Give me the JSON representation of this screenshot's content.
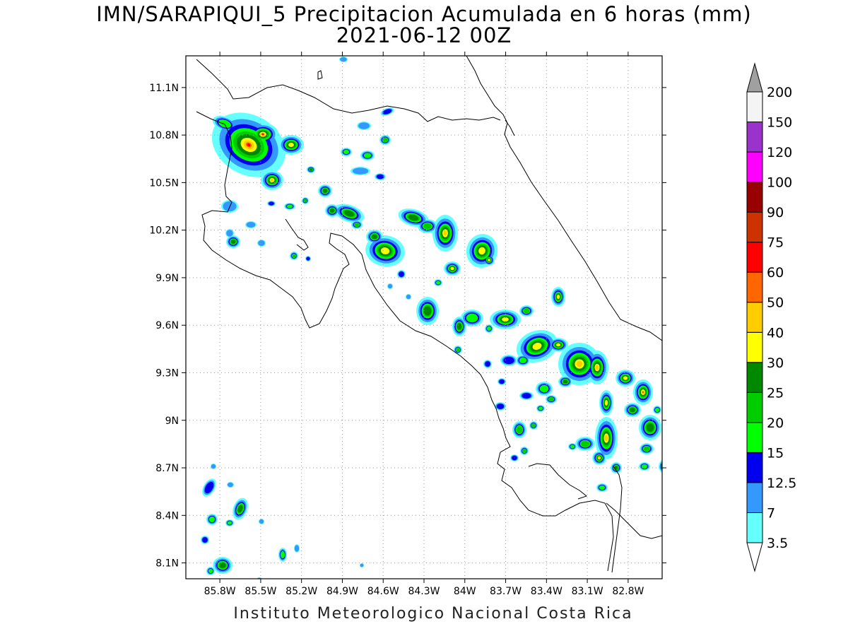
{
  "title": "IMN/SARAPIQUI_5 Precipitacion Acumulada en 6 horas (mm)",
  "subtitle": "2021-06-12 00Z",
  "footer": "Instituto Meteorologico Nacional Costa Rica",
  "map": {
    "lon_range": [
      -86.05,
      -82.55
    ],
    "lat_range": [
      8.0,
      11.3
    ],
    "x_ticks": [
      "85.8W",
      "85.5W",
      "85.2W",
      "84.9W",
      "84.6W",
      "84.3W",
      "84W",
      "83.7W",
      "83.4W",
      "83.1W",
      "82.8W"
    ],
    "x_tick_values": [
      -85.8,
      -85.5,
      -85.2,
      -84.9,
      -84.6,
      -84.3,
      -84.0,
      -83.7,
      -83.4,
      -83.1,
      -82.8
    ],
    "y_ticks": [
      "11.1N",
      "10.8N",
      "10.5N",
      "10.2N",
      "9.9N",
      "9.6N",
      "9.3N",
      "9N",
      "8.7N",
      "8.4N",
      "8.1N"
    ],
    "y_tick_values": [
      11.1,
      10.8,
      10.5,
      10.2,
      9.9,
      9.6,
      9.3,
      9.0,
      8.7,
      8.4,
      8.1
    ],
    "grid": "dotted"
  },
  "colorbar": {
    "labels": [
      "3.5",
      "7",
      "12.5",
      "15",
      "20",
      "25",
      "30",
      "40",
      "50",
      "60",
      "75",
      "90",
      "100",
      "120",
      "150",
      "200"
    ],
    "colors": [
      "#ffffff",
      "#66ffff",
      "#3399ff",
      "#0000ee",
      "#00ff00",
      "#00cc00",
      "#008800",
      "#ffff00",
      "#ffcc00",
      "#ff6600",
      "#ff0000",
      "#cc3300",
      "#990000",
      "#ff00ff",
      "#9933cc",
      "#f4f4f4",
      "#a0a0a0"
    ]
  }
}
